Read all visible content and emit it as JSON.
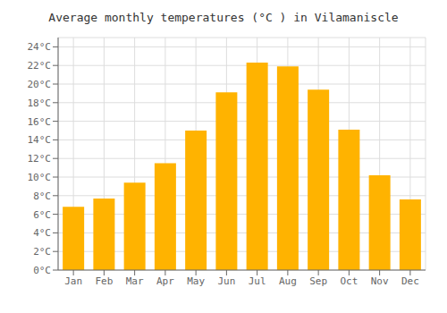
{
  "chart_data": {
    "type": "bar",
    "title": "Average monthly temperatures (°C ) in Vilamaniscle",
    "categories": [
      "Jan",
      "Feb",
      "Mar",
      "Apr",
      "May",
      "Jun",
      "Jul",
      "Aug",
      "Sep",
      "Oct",
      "Nov",
      "Dec"
    ],
    "values": [
      6.8,
      7.7,
      9.4,
      11.5,
      15.0,
      19.1,
      22.3,
      21.9,
      19.4,
      15.1,
      10.2,
      7.6
    ],
    "color": "#FFB300",
    "ylim": [
      0,
      25
    ],
    "yticks": [
      {
        "value": 0,
        "label": "0°C"
      },
      {
        "value": 2,
        "label": "2°C"
      },
      {
        "value": 4,
        "label": "4°C"
      },
      {
        "value": 6,
        "label": "6°C"
      },
      {
        "value": 8,
        "label": "8°C"
      },
      {
        "value": 10,
        "label": "10°C"
      },
      {
        "value": 12,
        "label": "12°C"
      },
      {
        "value": 14,
        "label": "14°C"
      },
      {
        "value": 16,
        "label": "16°C"
      },
      {
        "value": 18,
        "label": "18°C"
      },
      {
        "value": 20,
        "label": "20°C"
      },
      {
        "value": 22,
        "label": "22°C"
      },
      {
        "value": 24,
        "label": "24°C"
      }
    ],
    "grid": true
  }
}
